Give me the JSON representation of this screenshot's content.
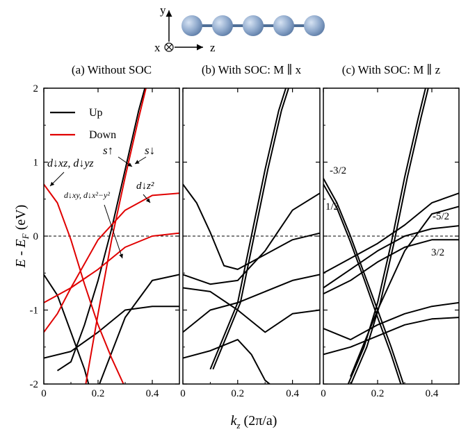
{
  "figure": {
    "inset": {
      "axis_y": "y",
      "axis_x": "x",
      "axis_z": "z",
      "atoms": 5,
      "atom_color": "#8fa9cc",
      "bond_color": "#4f6f97"
    },
    "xlabel_main": "k",
    "xlabel_sub": "z",
    "xlabel_rest": " (2π/a)",
    "ylabel_main": "E - E",
    "ylabel_sub": "F",
    "ylabel_rest": " (eV)"
  },
  "chart_data": [
    {
      "type": "line",
      "title": "(a) Without SOC",
      "xlim": [
        0,
        0.5
      ],
      "ylim": [
        -2,
        2
      ],
      "xticks": [
        "0",
        "0.2",
        "0.4"
      ],
      "yticks": [
        "-2",
        "-1",
        "0",
        "1",
        "2"
      ],
      "fermi_line": 0,
      "legend": {
        "placement": "top-left",
        "entries": [
          {
            "label": "Up",
            "color": "#000000"
          },
          {
            "label": "Down",
            "color": "#e00000"
          }
        ]
      },
      "annotations": [
        "d↓xz, d↓yz",
        "s↑",
        "s↓",
        "d↓xy, d↓x²−y²",
        "d↓z²"
      ],
      "series": [
        {
          "color": "#000000",
          "points": [
            [
              0,
              -0.52
            ],
            [
              0.05,
              -0.8
            ],
            [
              0.1,
              -1.3
            ],
            [
              0.15,
              -1.8
            ],
            [
              0.18,
              -2.2
            ]
          ]
        },
        {
          "color": "#000000",
          "points": [
            [
              0,
              -1.65
            ],
            [
              0.1,
              -1.56
            ],
            [
              0.2,
              -1.3
            ],
            [
              0.3,
              -1.0
            ],
            [
              0.4,
              -0.95
            ],
            [
              0.5,
              -0.95
            ]
          ]
        },
        {
          "color": "#000000",
          "points": [
            [
              0.2,
              -2.05
            ],
            [
              0.3,
              -1.1
            ],
            [
              0.4,
              -0.6
            ],
            [
              0.5,
              -0.52
            ]
          ]
        },
        {
          "color": "#000000",
          "points": [
            [
              0.05,
              -1.82
            ],
            [
              0.1,
              -1.7
            ],
            [
              0.15,
              -1.2
            ],
            [
              0.2,
              -0.6
            ],
            [
              0.25,
              0.1
            ],
            [
              0.3,
              0.9
            ],
            [
              0.35,
              1.7
            ],
            [
              0.38,
              2.1
            ]
          ]
        },
        {
          "color": "#e00000",
          "points": [
            [
              0,
              0.7
            ],
            [
              0.05,
              0.45
            ],
            [
              0.1,
              -0.05
            ],
            [
              0.15,
              -0.65
            ],
            [
              0.2,
              -1.2
            ],
            [
              0.25,
              -1.65
            ],
            [
              0.3,
              -2.05
            ]
          ]
        },
        {
          "color": "#e00000",
          "points": [
            [
              0,
              -0.9
            ],
            [
              0.1,
              -0.7
            ],
            [
              0.2,
              -0.45
            ],
            [
              0.3,
              -0.15
            ],
            [
              0.4,
              0.0
            ],
            [
              0.5,
              0.04
            ]
          ]
        },
        {
          "color": "#e00000",
          "points": [
            [
              0,
              -1.3
            ],
            [
              0.05,
              -1.05
            ],
            [
              0.1,
              -0.7
            ],
            [
              0.2,
              -0.05
            ],
            [
              0.3,
              0.35
            ],
            [
              0.4,
              0.55
            ],
            [
              0.5,
              0.58
            ]
          ]
        },
        {
          "color": "#e00000",
          "points": [
            [
              0.15,
              -2.1
            ],
            [
              0.2,
              -1.05
            ],
            [
              0.25,
              -0.05
            ],
            [
              0.3,
              0.8
            ],
            [
              0.35,
              1.6
            ],
            [
              0.38,
              2.05
            ]
          ]
        }
      ]
    },
    {
      "type": "line",
      "title": "(b) With SOC: M ∥ x",
      "xlim": [
        0,
        0.5
      ],
      "ylim": [
        -2,
        2
      ],
      "xticks": [
        "0",
        "0.2",
        "0.4"
      ],
      "yticks": [],
      "fermi_line": 0,
      "series": [
        {
          "color": "#000000",
          "points": [
            [
              0,
              0.7
            ],
            [
              0.05,
              0.45
            ],
            [
              0.1,
              0.05
            ],
            [
              0.15,
              -0.4
            ],
            [
              0.2,
              -0.45
            ],
            [
              0.3,
              -0.25
            ],
            [
              0.4,
              -0.05
            ],
            [
              0.5,
              0.04
            ]
          ]
        },
        {
          "color": "#000000",
          "points": [
            [
              0,
              -0.52
            ],
            [
              0.1,
              -0.65
            ],
            [
              0.2,
              -0.6
            ],
            [
              0.3,
              -0.2
            ],
            [
              0.4,
              0.35
            ],
            [
              0.5,
              0.58
            ]
          ]
        },
        {
          "color": "#000000",
          "points": [
            [
              0,
              -0.7
            ],
            [
              0.1,
              -0.75
            ],
            [
              0.2,
              -1.0
            ],
            [
              0.3,
              -1.3
            ],
            [
              0.4,
              -1.05
            ],
            [
              0.5,
              -1.0
            ]
          ]
        },
        {
          "color": "#000000",
          "points": [
            [
              0,
              -1.3
            ],
            [
              0.1,
              -1.0
            ],
            [
              0.2,
              -0.9
            ],
            [
              0.3,
              -0.75
            ],
            [
              0.4,
              -0.6
            ],
            [
              0.5,
              -0.52
            ]
          ]
        },
        {
          "color": "#000000",
          "points": [
            [
              0,
              -1.65
            ],
            [
              0.1,
              -1.55
            ],
            [
              0.2,
              -1.4
            ],
            [
              0.25,
              -1.6
            ],
            [
              0.3,
              -1.95
            ],
            [
              0.35,
              -2.1
            ]
          ]
        },
        {
          "color": "#000000",
          "points": [
            [
              0.1,
              -1.8
            ],
            [
              0.2,
              -0.9
            ],
            [
              0.25,
              0.0
            ],
            [
              0.3,
              0.9
            ],
            [
              0.35,
              1.7
            ],
            [
              0.38,
              2.05
            ]
          ]
        },
        {
          "color": "#000000",
          "points": [
            [
              0.11,
              -1.8
            ],
            [
              0.21,
              -0.9
            ],
            [
              0.26,
              0.0
            ],
            [
              0.31,
              0.9
            ],
            [
              0.36,
              1.7
            ],
            [
              0.39,
              2.05
            ]
          ]
        }
      ]
    },
    {
      "type": "line",
      "title": "(c) With SOC: M ∥ z",
      "xlim": [
        0,
        0.5
      ],
      "ylim": [
        -2,
        2
      ],
      "xticks": [
        "0",
        "0.2",
        "0.4"
      ],
      "yticks": [],
      "fermi_line": 0,
      "annotations": [
        "-3/2",
        "1/2",
        "-5/2",
        "3/2"
      ],
      "series": [
        {
          "color": "#000000",
          "points": [
            [
              0,
              0.78
            ],
            [
              0.05,
              0.45
            ],
            [
              0.1,
              0.0
            ],
            [
              0.15,
              -0.5
            ],
            [
              0.2,
              -1.0
            ],
            [
              0.25,
              -1.5
            ],
            [
              0.3,
              -2.05
            ]
          ]
        },
        {
          "color": "#000000",
          "points": [
            [
              0,
              0.7
            ],
            [
              0.05,
              0.38
            ],
            [
              0.1,
              -0.08
            ],
            [
              0.15,
              -0.58
            ],
            [
              0.2,
              -1.1
            ],
            [
              0.25,
              -1.6
            ],
            [
              0.29,
              -2.05
            ]
          ]
        },
        {
          "color": "#000000",
          "points": [
            [
              0,
              -0.5
            ],
            [
              0.1,
              -0.3
            ],
            [
              0.2,
              -0.1
            ],
            [
              0.3,
              0.15
            ],
            [
              0.4,
              0.45
            ],
            [
              0.5,
              0.58
            ]
          ]
        },
        {
          "color": "#000000",
          "points": [
            [
              0,
              -0.7
            ],
            [
              0.1,
              -0.45
            ],
            [
              0.2,
              -0.2
            ],
            [
              0.3,
              0.0
            ],
            [
              0.4,
              0.1
            ],
            [
              0.5,
              0.14
            ]
          ]
        },
        {
          "color": "#000000",
          "points": [
            [
              0,
              -0.78
            ],
            [
              0.1,
              -0.6
            ],
            [
              0.2,
              -0.35
            ],
            [
              0.3,
              -0.15
            ],
            [
              0.4,
              -0.05
            ],
            [
              0.5,
              -0.05
            ]
          ]
        },
        {
          "color": "#000000",
          "points": [
            [
              0,
              -1.25
            ],
            [
              0.1,
              -1.4
            ],
            [
              0.2,
              -1.2
            ],
            [
              0.3,
              -1.05
            ],
            [
              0.4,
              -0.95
            ],
            [
              0.5,
              -0.9
            ]
          ]
        },
        {
          "color": "#000000",
          "points": [
            [
              0,
              -1.6
            ],
            [
              0.1,
              -1.5
            ],
            [
              0.2,
              -1.35
            ],
            [
              0.3,
              -1.2
            ],
            [
              0.4,
              -1.12
            ],
            [
              0.5,
              -1.1
            ]
          ]
        },
        {
          "color": "#000000",
          "points": [
            [
              0.1,
              -1.9
            ],
            [
              0.2,
              -1.0
            ],
            [
              0.3,
              -0.2
            ],
            [
              0.4,
              0.3
            ],
            [
              0.5,
              0.4
            ]
          ]
        },
        {
          "color": "#000000",
          "points": [
            [
              0.08,
              -2.1
            ],
            [
              0.15,
              -1.5
            ],
            [
              0.2,
              -0.9
            ],
            [
              0.25,
              -0.1
            ],
            [
              0.3,
              0.8
            ],
            [
              0.35,
              1.6
            ],
            [
              0.38,
              2.05
            ]
          ]
        },
        {
          "color": "#000000",
          "points": [
            [
              0.09,
              -2.1
            ],
            [
              0.16,
              -1.5
            ],
            [
              0.21,
              -0.9
            ],
            [
              0.26,
              -0.1
            ],
            [
              0.31,
              0.8
            ],
            [
              0.36,
              1.6
            ],
            [
              0.39,
              2.05
            ]
          ]
        }
      ]
    }
  ]
}
